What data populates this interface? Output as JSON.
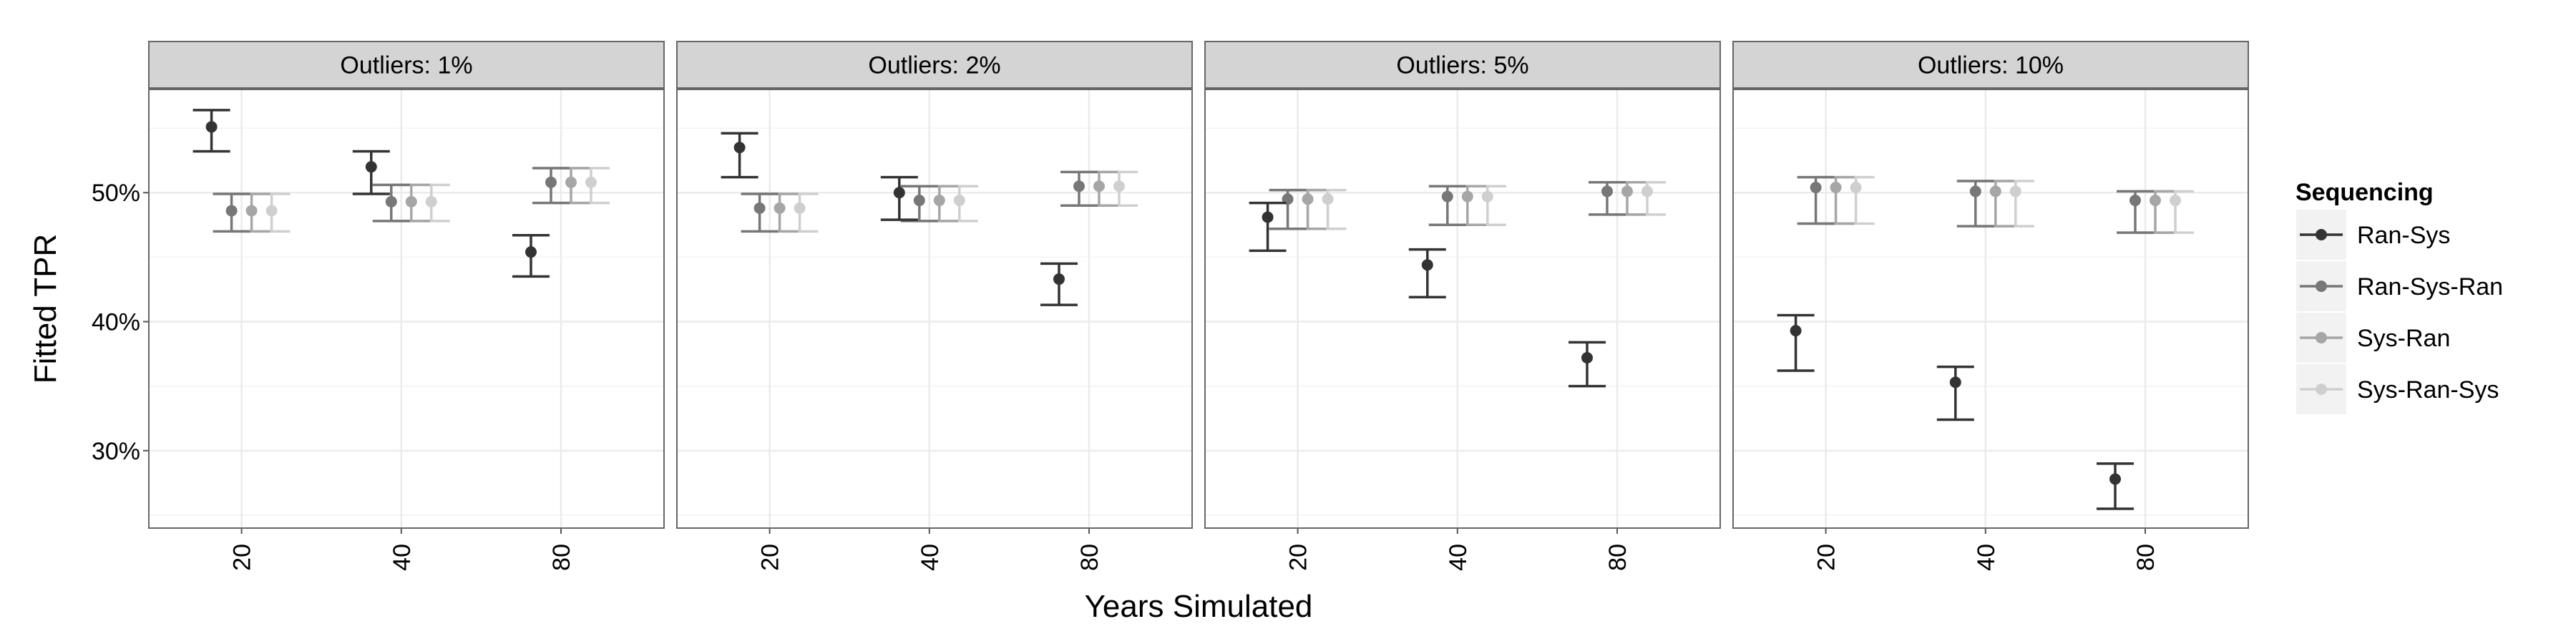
{
  "chart_data": {
    "type": "errorbar",
    "facet_variable": "Outliers",
    "facets": [
      {
        "label": "Outliers: 1%",
        "groups": [
          {
            "x": "20",
            "Ran-Sys": {
              "y": 55.1,
              "lo": 53.2,
              "hi": 56.4
            },
            "Ran-Sys-Ran": {
              "y": 48.6,
              "lo": 47.0,
              "hi": 49.9
            },
            "Sys-Ran": {
              "y": 48.6,
              "lo": 47.0,
              "hi": 49.9
            },
            "Sys-Ran-Sys": {
              "y": 48.6,
              "lo": 47.0,
              "hi": 49.9
            }
          },
          {
            "x": "40",
            "Ran-Sys": {
              "y": 52.0,
              "lo": 49.9,
              "hi": 53.2
            },
            "Ran-Sys-Ran": {
              "y": 49.3,
              "lo": 47.8,
              "hi": 50.6
            },
            "Sys-Ran": {
              "y": 49.3,
              "lo": 47.8,
              "hi": 50.6
            },
            "Sys-Ran-Sys": {
              "y": 49.3,
              "lo": 47.8,
              "hi": 50.6
            }
          },
          {
            "x": "80",
            "Ran-Sys": {
              "y": 45.4,
              "lo": 43.5,
              "hi": 46.7
            },
            "Ran-Sys-Ran": {
              "y": 50.8,
              "lo": 49.2,
              "hi": 51.9
            },
            "Sys-Ran": {
              "y": 50.8,
              "lo": 49.2,
              "hi": 51.9
            },
            "Sys-Ran-Sys": {
              "y": 50.8,
              "lo": 49.2,
              "hi": 51.9
            }
          }
        ]
      },
      {
        "label": "Outliers: 2%",
        "groups": [
          {
            "x": "20",
            "Ran-Sys": {
              "y": 53.5,
              "lo": 51.2,
              "hi": 54.6
            },
            "Ran-Sys-Ran": {
              "y": 48.8,
              "lo": 47.0,
              "hi": 49.9
            },
            "Sys-Ran": {
              "y": 48.8,
              "lo": 47.0,
              "hi": 49.9
            },
            "Sys-Ran-Sys": {
              "y": 48.8,
              "lo": 47.0,
              "hi": 49.9
            }
          },
          {
            "x": "40",
            "Ran-Sys": {
              "y": 50.0,
              "lo": 47.9,
              "hi": 51.2
            },
            "Ran-Sys-Ran": {
              "y": 49.4,
              "lo": 47.8,
              "hi": 50.5
            },
            "Sys-Ran": {
              "y": 49.4,
              "lo": 47.8,
              "hi": 50.5
            },
            "Sys-Ran-Sys": {
              "y": 49.4,
              "lo": 47.8,
              "hi": 50.5
            }
          },
          {
            "x": "80",
            "Ran-Sys": {
              "y": 43.3,
              "lo": 41.3,
              "hi": 44.5
            },
            "Ran-Sys-Ran": {
              "y": 50.5,
              "lo": 49.0,
              "hi": 51.6
            },
            "Sys-Ran": {
              "y": 50.5,
              "lo": 49.0,
              "hi": 51.6
            },
            "Sys-Ran-Sys": {
              "y": 50.5,
              "lo": 49.0,
              "hi": 51.6
            }
          }
        ]
      },
      {
        "label": "Outliers: 5%",
        "groups": [
          {
            "x": "20",
            "Ran-Sys": {
              "y": 48.1,
              "lo": 45.5,
              "hi": 49.2
            },
            "Ran-Sys-Ran": {
              "y": 49.5,
              "lo": 47.2,
              "hi": 50.2
            },
            "Sys-Ran": {
              "y": 49.5,
              "lo": 47.2,
              "hi": 50.2
            },
            "Sys-Ran-Sys": {
              "y": 49.5,
              "lo": 47.2,
              "hi": 50.2
            }
          },
          {
            "x": "40",
            "Ran-Sys": {
              "y": 44.4,
              "lo": 41.9,
              "hi": 45.6
            },
            "Ran-Sys-Ran": {
              "y": 49.7,
              "lo": 47.5,
              "hi": 50.5
            },
            "Sys-Ran": {
              "y": 49.7,
              "lo": 47.5,
              "hi": 50.5
            },
            "Sys-Ran-Sys": {
              "y": 49.7,
              "lo": 47.5,
              "hi": 50.5
            }
          },
          {
            "x": "80",
            "Ran-Sys": {
              "y": 37.2,
              "lo": 35.0,
              "hi": 38.4
            },
            "Ran-Sys-Ran": {
              "y": 50.1,
              "lo": 48.3,
              "hi": 50.8
            },
            "Sys-Ran": {
              "y": 50.1,
              "lo": 48.3,
              "hi": 50.8
            },
            "Sys-Ran-Sys": {
              "y": 50.1,
              "lo": 48.3,
              "hi": 50.8
            }
          }
        ]
      },
      {
        "label": "Outliers: 10%",
        "groups": [
          {
            "x": "20",
            "Ran-Sys": {
              "y": 39.3,
              "lo": 36.2,
              "hi": 40.5
            },
            "Ran-Sys-Ran": {
              "y": 50.4,
              "lo": 47.6,
              "hi": 51.2
            },
            "Sys-Ran": {
              "y": 50.4,
              "lo": 47.6,
              "hi": 51.2
            },
            "Sys-Ran-Sys": {
              "y": 50.4,
              "lo": 47.6,
              "hi": 51.2
            }
          },
          {
            "x": "40",
            "Ran-Sys": {
              "y": 35.3,
              "lo": 32.4,
              "hi": 36.5
            },
            "Ran-Sys-Ran": {
              "y": 50.1,
              "lo": 47.4,
              "hi": 50.9
            },
            "Sys-Ran": {
              "y": 50.1,
              "lo": 47.4,
              "hi": 50.9
            },
            "Sys-Ran-Sys": {
              "y": 50.1,
              "lo": 47.4,
              "hi": 50.9
            }
          },
          {
            "x": "80",
            "Ran-Sys": {
              "y": 27.8,
              "lo": 25.5,
              "hi": 29.0
            },
            "Ran-Sys-Ran": {
              "y": 49.4,
              "lo": 46.9,
              "hi": 50.1
            },
            "Sys-Ran": {
              "y": 49.4,
              "lo": 46.9,
              "hi": 50.1
            },
            "Sys-Ran-Sys": {
              "y": 49.4,
              "lo": 46.9,
              "hi": 50.1
            }
          }
        ]
      }
    ],
    "series": [
      {
        "name": "Ran-Sys",
        "color": "#333333"
      },
      {
        "name": "Ran-Sys-Ran",
        "color": "#777777"
      },
      {
        "name": "Sys-Ran",
        "color": "#a6a6a6"
      },
      {
        "name": "Sys-Ran-Sys",
        "color": "#cfcfcf"
      }
    ],
    "categories": [
      "20",
      "40",
      "80"
    ],
    "xlabel": "Years Simulated",
    "ylabel": "Fitted TPR",
    "ylim": [
      24,
      58
    ],
    "yticks": [
      30,
      40,
      50
    ],
    "ytick_labels": [
      "30%",
      "40%",
      "50%"
    ],
    "legend": {
      "title": "Sequencing",
      "placement": "right"
    },
    "grid": true,
    "panel_background": "#ffffff",
    "strip_background": "#d4d4d4",
    "grid_color": "#ebebeb"
  }
}
